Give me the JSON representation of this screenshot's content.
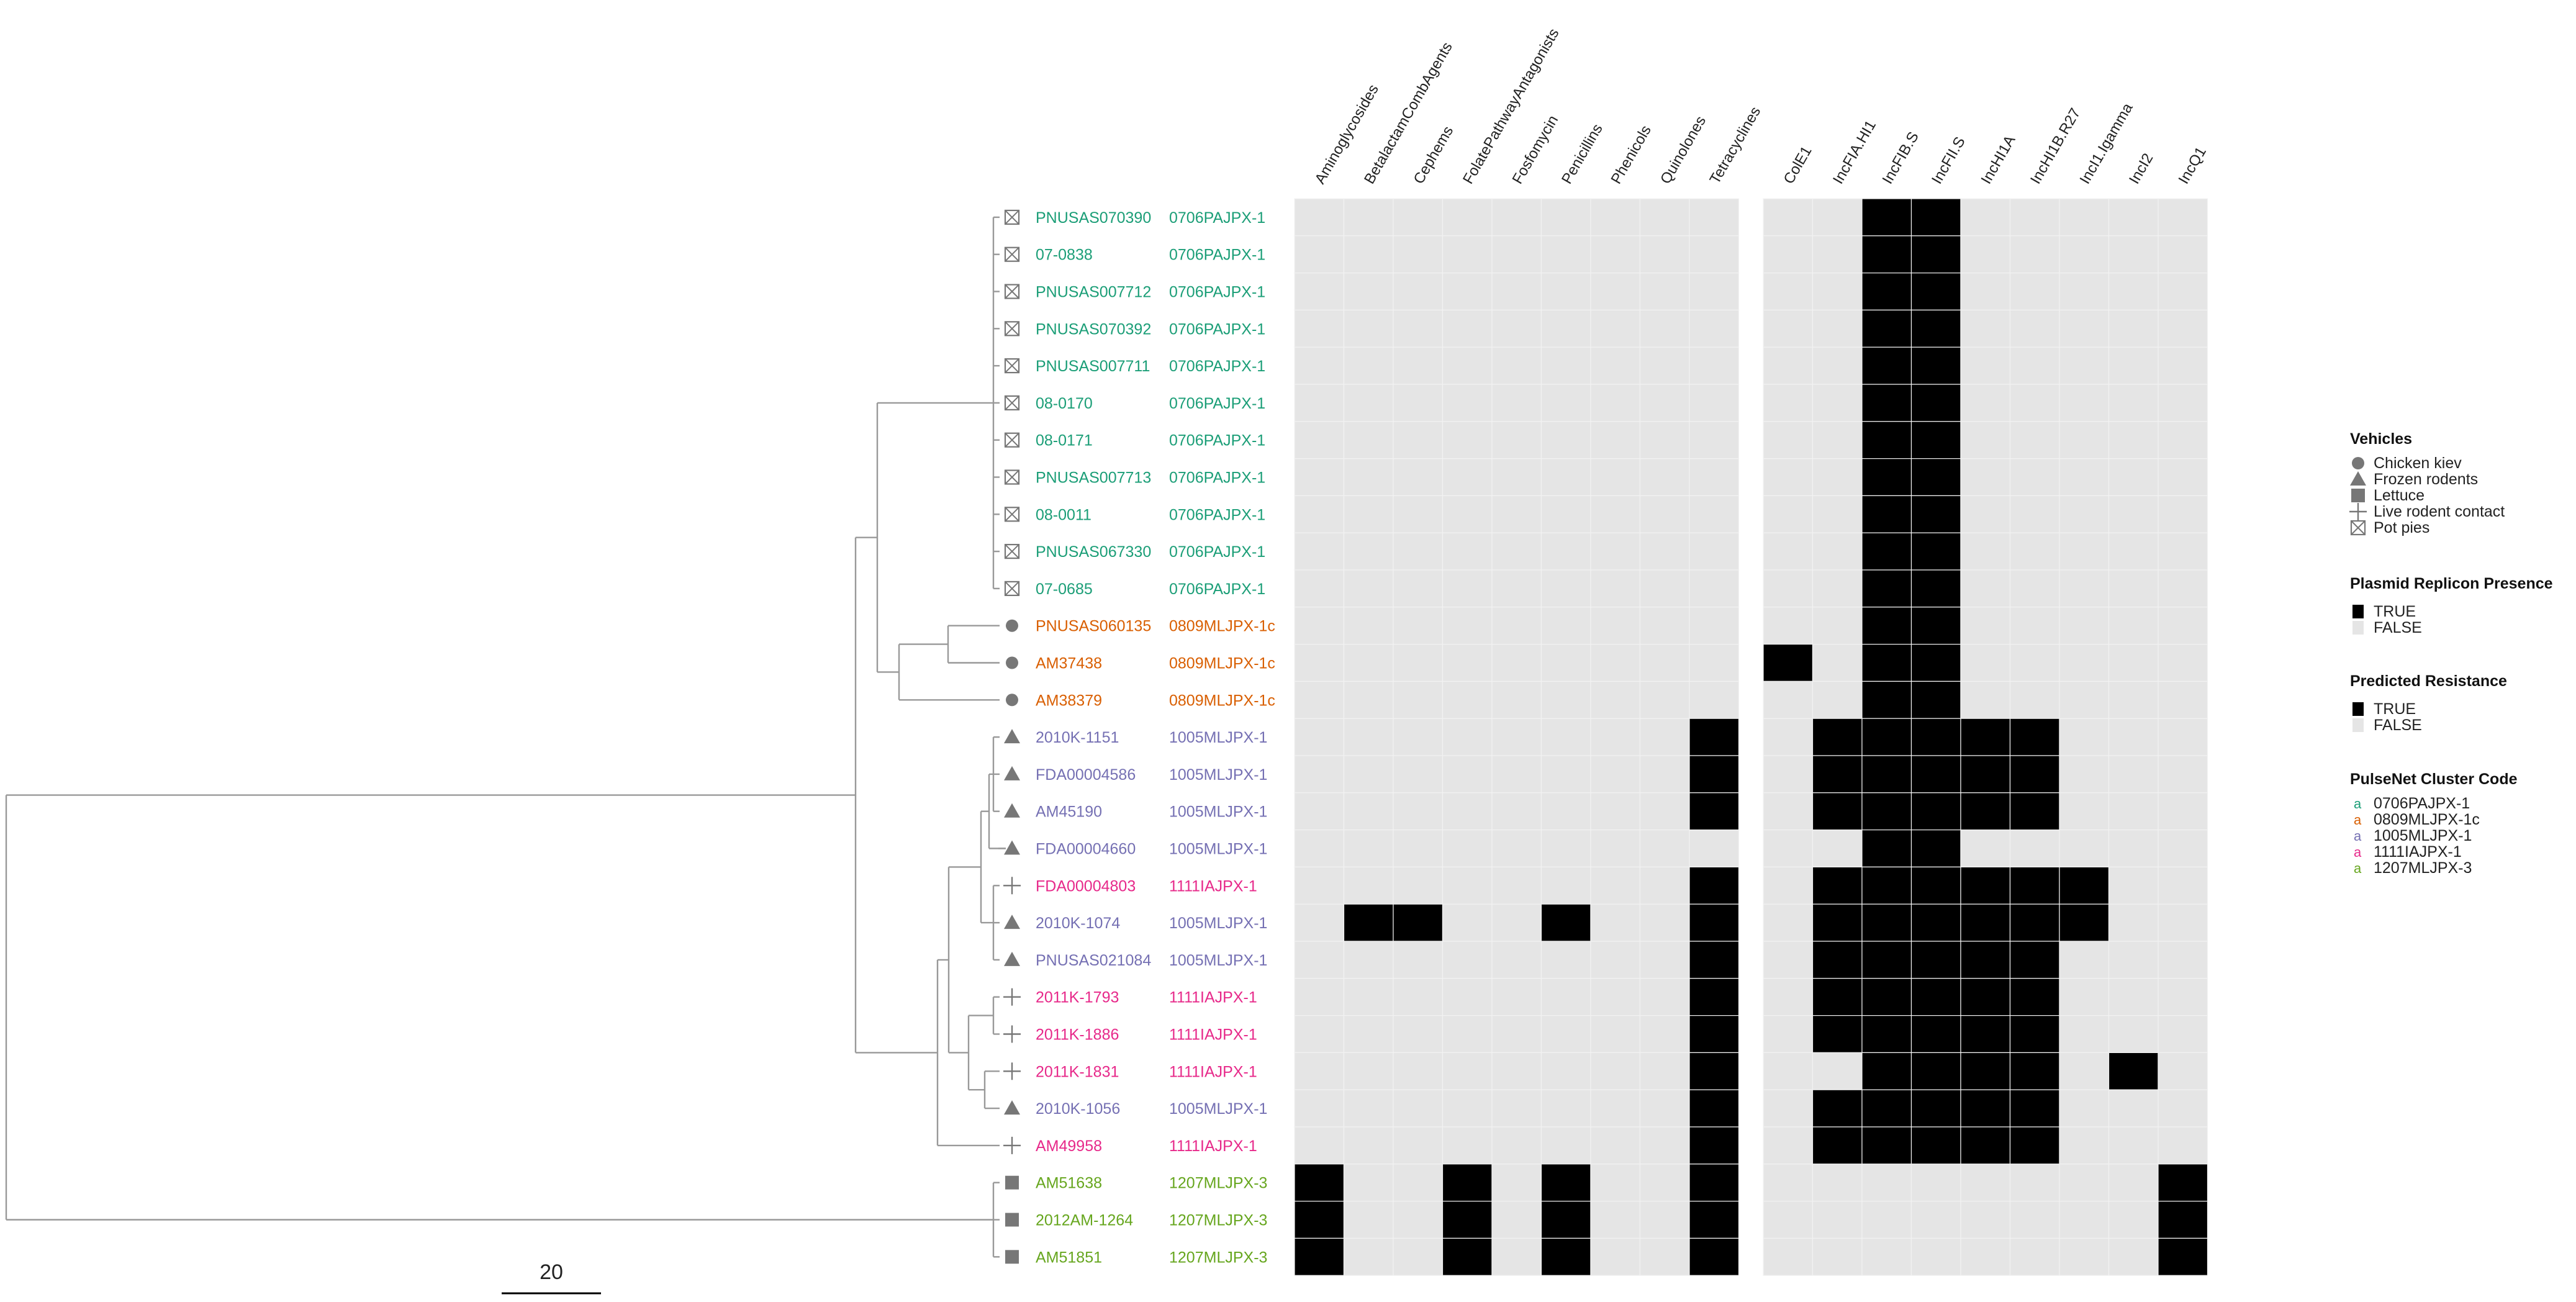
{
  "chart_data": {
    "type": "heatmap",
    "title": "",
    "cluster_colors": {
      "0706PAJPX-1": "#1b9e77",
      "0809MLJPX-1c": "#d95f02",
      "1005MLJPX-1": "#7570b3",
      "1111IAJPX-1": "#e7298a",
      "1207MLJPX-3": "#66a61e"
    },
    "colors": {
      "true": "#000000",
      "false": "#e5e5e5",
      "tree": "#999999",
      "shape": "#777777"
    },
    "resistance_columns": [
      "Aminoglycosides",
      "BetalactamCombAgents",
      "Cephems",
      "FolatePathwayAntagonists",
      "Fosfomycin",
      "Penicillins",
      "Phenicols",
      "Quinolones",
      "Tetracyclines"
    ],
    "plasmid_columns": [
      "ColE1",
      "IncFIA.HI1",
      "IncFIB.S",
      "IncFII.S",
      "IncHI1A",
      "IncHI1B.R27",
      "IncI1.Igamma",
      "IncI2",
      "IncQ1"
    ],
    "isolates": [
      {
        "id": "PNUSAS070390",
        "cluster": "0706PAJPX-1",
        "vehicle": "Pot pies",
        "res": [],
        "plas": [
          2,
          3
        ]
      },
      {
        "id": "07-0838",
        "cluster": "0706PAJPX-1",
        "vehicle": "Pot pies",
        "res": [],
        "plas": [
          2,
          3
        ]
      },
      {
        "id": "PNUSAS007712",
        "cluster": "0706PAJPX-1",
        "vehicle": "Pot pies",
        "res": [],
        "plas": [
          2,
          3
        ]
      },
      {
        "id": "PNUSAS070392",
        "cluster": "0706PAJPX-1",
        "vehicle": "Pot pies",
        "res": [],
        "plas": [
          2,
          3
        ]
      },
      {
        "id": "PNUSAS007711",
        "cluster": "0706PAJPX-1",
        "vehicle": "Pot pies",
        "res": [],
        "plas": [
          2,
          3
        ]
      },
      {
        "id": "08-0170",
        "cluster": "0706PAJPX-1",
        "vehicle": "Pot pies",
        "res": [],
        "plas": [
          2,
          3
        ]
      },
      {
        "id": "08-0171",
        "cluster": "0706PAJPX-1",
        "vehicle": "Pot pies",
        "res": [],
        "plas": [
          2,
          3
        ]
      },
      {
        "id": "PNUSAS007713",
        "cluster": "0706PAJPX-1",
        "vehicle": "Pot pies",
        "res": [],
        "plas": [
          2,
          3
        ]
      },
      {
        "id": "08-0011",
        "cluster": "0706PAJPX-1",
        "vehicle": "Pot pies",
        "res": [],
        "plas": [
          2,
          3
        ]
      },
      {
        "id": "PNUSAS067330",
        "cluster": "0706PAJPX-1",
        "vehicle": "Pot pies",
        "res": [],
        "plas": [
          2,
          3
        ]
      },
      {
        "id": "07-0685",
        "cluster": "0706PAJPX-1",
        "vehicle": "Pot pies",
        "res": [],
        "plas": [
          2,
          3
        ]
      },
      {
        "id": "PNUSAS060135",
        "cluster": "0809MLJPX-1c",
        "vehicle": "Chicken kiev",
        "res": [],
        "plas": [
          2,
          3
        ]
      },
      {
        "id": "AM37438",
        "cluster": "0809MLJPX-1c",
        "vehicle": "Chicken kiev",
        "res": [],
        "plas": [
          0,
          2,
          3
        ]
      },
      {
        "id": "AM38379",
        "cluster": "0809MLJPX-1c",
        "vehicle": "Chicken kiev",
        "res": [],
        "plas": [
          2,
          3
        ]
      },
      {
        "id": "2010K-1151",
        "cluster": "1005MLJPX-1",
        "vehicle": "Frozen rodents",
        "res": [
          8
        ],
        "plas": [
          1,
          2,
          3,
          4,
          5
        ]
      },
      {
        "id": "FDA00004586",
        "cluster": "1005MLJPX-1",
        "vehicle": "Frozen rodents",
        "res": [
          8
        ],
        "plas": [
          1,
          2,
          3,
          4,
          5
        ]
      },
      {
        "id": "AM45190",
        "cluster": "1005MLJPX-1",
        "vehicle": "Frozen rodents",
        "res": [
          8
        ],
        "plas": [
          1,
          2,
          3,
          4,
          5
        ]
      },
      {
        "id": "FDA00004660",
        "cluster": "1005MLJPX-1",
        "vehicle": "Frozen rodents",
        "res": [],
        "plas": [
          2,
          3
        ]
      },
      {
        "id": "FDA00004803",
        "cluster": "1111IAJPX-1",
        "vehicle": "Live rodent contact",
        "res": [
          8
        ],
        "plas": [
          1,
          2,
          3,
          4,
          5,
          6
        ]
      },
      {
        "id": "2010K-1074",
        "cluster": "1005MLJPX-1",
        "vehicle": "Frozen rodents",
        "res": [
          1,
          2,
          5,
          8
        ],
        "plas": [
          1,
          2,
          3,
          4,
          5,
          6
        ]
      },
      {
        "id": "PNUSAS021084",
        "cluster": "1005MLJPX-1",
        "vehicle": "Frozen rodents",
        "res": [
          8
        ],
        "plas": [
          1,
          2,
          3,
          4,
          5
        ]
      },
      {
        "id": "2011K-1793",
        "cluster": "1111IAJPX-1",
        "vehicle": "Live rodent contact",
        "res": [
          8
        ],
        "plas": [
          1,
          2,
          3,
          4,
          5
        ]
      },
      {
        "id": "2011K-1886",
        "cluster": "1111IAJPX-1",
        "vehicle": "Live rodent contact",
        "res": [
          8
        ],
        "plas": [
          1,
          2,
          3,
          4,
          5
        ]
      },
      {
        "id": "2011K-1831",
        "cluster": "1111IAJPX-1",
        "vehicle": "Live rodent contact",
        "res": [
          8
        ],
        "plas": [
          2,
          3,
          4,
          5,
          7
        ]
      },
      {
        "id": "2010K-1056",
        "cluster": "1005MLJPX-1",
        "vehicle": "Frozen rodents",
        "res": [
          8
        ],
        "plas": [
          1,
          2,
          3,
          4,
          5
        ]
      },
      {
        "id": "AM49958",
        "cluster": "1111IAJPX-1",
        "vehicle": "Live rodent contact",
        "res": [
          8
        ],
        "plas": [
          1,
          2,
          3,
          4,
          5
        ]
      },
      {
        "id": "AM51638",
        "cluster": "1207MLJPX-3",
        "vehicle": "Lettuce",
        "res": [
          0,
          3,
          5,
          8
        ],
        "plas": [
          8
        ]
      },
      {
        "id": "2012AM-1264",
        "cluster": "1207MLJPX-3",
        "vehicle": "Lettuce",
        "res": [
          0,
          3,
          5,
          8
        ],
        "plas": [
          8
        ]
      },
      {
        "id": "AM51851",
        "cluster": "1207MLJPX-3",
        "vehicle": "Lettuce",
        "res": [
          0,
          3,
          5,
          8
        ],
        "plas": [
          8
        ]
      }
    ],
    "scale_bar_label": "20",
    "legends": {
      "vehicles": {
        "title": "Vehicles",
        "items": [
          {
            "label": "Chicken kiev",
            "shape": "circle"
          },
          {
            "label": "Frozen rodents",
            "shape": "triangle"
          },
          {
            "label": "Lettuce",
            "shape": "square"
          },
          {
            "label": "Live rodent contact",
            "shape": "plus"
          },
          {
            "label": "Pot pies",
            "shape": "boxx"
          }
        ]
      },
      "plasmid": {
        "title": "Plasmid Replicon Presence",
        "items": [
          {
            "label": "TRUE",
            "value": true
          },
          {
            "label": "FALSE",
            "value": false
          }
        ]
      },
      "resistance": {
        "title": "Predicted Resistance",
        "items": [
          {
            "label": "TRUE",
            "value": true
          },
          {
            "label": "FALSE",
            "value": false
          }
        ]
      },
      "pulsenet": {
        "title": "PulseNet Cluster Code",
        "glyph": "a",
        "items": [
          "0706PAJPX-1",
          "0809MLJPX-1c",
          "1005MLJPX-1",
          "1111IAJPX-1",
          "1207MLJPX-3"
        ]
      }
    }
  }
}
